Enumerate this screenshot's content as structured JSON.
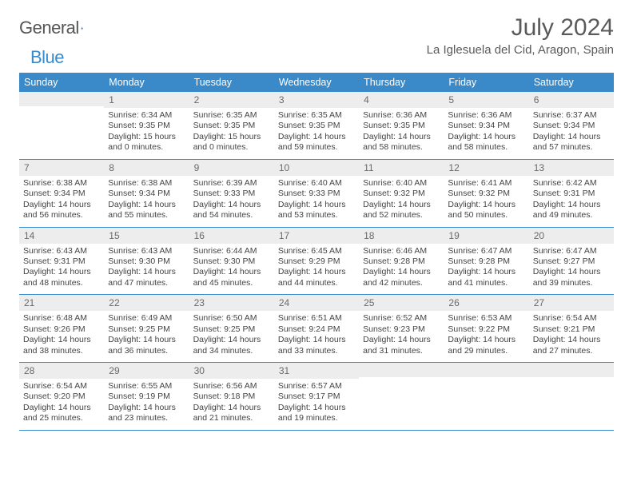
{
  "brand": {
    "part1": "General",
    "part2": "Blue"
  },
  "title": "July 2024",
  "location": "La Iglesuela del Cid, Aragon, Spain",
  "colors": {
    "header_bg": "#3a8ac9",
    "header_text": "#ffffff",
    "daynum_bg": "#ededed",
    "daynum_text": "#6a6a6a",
    "body_text": "#444444",
    "rule": "#3a8ac9"
  },
  "day_headers": [
    "Sunday",
    "Monday",
    "Tuesday",
    "Wednesday",
    "Thursday",
    "Friday",
    "Saturday"
  ],
  "weeks": [
    [
      {
        "num": "",
        "sunrise": "",
        "sunset": "",
        "daylight": ""
      },
      {
        "num": "1",
        "sunrise": "Sunrise: 6:34 AM",
        "sunset": "Sunset: 9:35 PM",
        "daylight": "Daylight: 15 hours and 0 minutes."
      },
      {
        "num": "2",
        "sunrise": "Sunrise: 6:35 AM",
        "sunset": "Sunset: 9:35 PM",
        "daylight": "Daylight: 15 hours and 0 minutes."
      },
      {
        "num": "3",
        "sunrise": "Sunrise: 6:35 AM",
        "sunset": "Sunset: 9:35 PM",
        "daylight": "Daylight: 14 hours and 59 minutes."
      },
      {
        "num": "4",
        "sunrise": "Sunrise: 6:36 AM",
        "sunset": "Sunset: 9:35 PM",
        "daylight": "Daylight: 14 hours and 58 minutes."
      },
      {
        "num": "5",
        "sunrise": "Sunrise: 6:36 AM",
        "sunset": "Sunset: 9:34 PM",
        "daylight": "Daylight: 14 hours and 58 minutes."
      },
      {
        "num": "6",
        "sunrise": "Sunrise: 6:37 AM",
        "sunset": "Sunset: 9:34 PM",
        "daylight": "Daylight: 14 hours and 57 minutes."
      }
    ],
    [
      {
        "num": "7",
        "sunrise": "Sunrise: 6:38 AM",
        "sunset": "Sunset: 9:34 PM",
        "daylight": "Daylight: 14 hours and 56 minutes."
      },
      {
        "num": "8",
        "sunrise": "Sunrise: 6:38 AM",
        "sunset": "Sunset: 9:34 PM",
        "daylight": "Daylight: 14 hours and 55 minutes."
      },
      {
        "num": "9",
        "sunrise": "Sunrise: 6:39 AM",
        "sunset": "Sunset: 9:33 PM",
        "daylight": "Daylight: 14 hours and 54 minutes."
      },
      {
        "num": "10",
        "sunrise": "Sunrise: 6:40 AM",
        "sunset": "Sunset: 9:33 PM",
        "daylight": "Daylight: 14 hours and 53 minutes."
      },
      {
        "num": "11",
        "sunrise": "Sunrise: 6:40 AM",
        "sunset": "Sunset: 9:32 PM",
        "daylight": "Daylight: 14 hours and 52 minutes."
      },
      {
        "num": "12",
        "sunrise": "Sunrise: 6:41 AM",
        "sunset": "Sunset: 9:32 PM",
        "daylight": "Daylight: 14 hours and 50 minutes."
      },
      {
        "num": "13",
        "sunrise": "Sunrise: 6:42 AM",
        "sunset": "Sunset: 9:31 PM",
        "daylight": "Daylight: 14 hours and 49 minutes."
      }
    ],
    [
      {
        "num": "14",
        "sunrise": "Sunrise: 6:43 AM",
        "sunset": "Sunset: 9:31 PM",
        "daylight": "Daylight: 14 hours and 48 minutes."
      },
      {
        "num": "15",
        "sunrise": "Sunrise: 6:43 AM",
        "sunset": "Sunset: 9:30 PM",
        "daylight": "Daylight: 14 hours and 47 minutes."
      },
      {
        "num": "16",
        "sunrise": "Sunrise: 6:44 AM",
        "sunset": "Sunset: 9:30 PM",
        "daylight": "Daylight: 14 hours and 45 minutes."
      },
      {
        "num": "17",
        "sunrise": "Sunrise: 6:45 AM",
        "sunset": "Sunset: 9:29 PM",
        "daylight": "Daylight: 14 hours and 44 minutes."
      },
      {
        "num": "18",
        "sunrise": "Sunrise: 6:46 AM",
        "sunset": "Sunset: 9:28 PM",
        "daylight": "Daylight: 14 hours and 42 minutes."
      },
      {
        "num": "19",
        "sunrise": "Sunrise: 6:47 AM",
        "sunset": "Sunset: 9:28 PM",
        "daylight": "Daylight: 14 hours and 41 minutes."
      },
      {
        "num": "20",
        "sunrise": "Sunrise: 6:47 AM",
        "sunset": "Sunset: 9:27 PM",
        "daylight": "Daylight: 14 hours and 39 minutes."
      }
    ],
    [
      {
        "num": "21",
        "sunrise": "Sunrise: 6:48 AM",
        "sunset": "Sunset: 9:26 PM",
        "daylight": "Daylight: 14 hours and 38 minutes."
      },
      {
        "num": "22",
        "sunrise": "Sunrise: 6:49 AM",
        "sunset": "Sunset: 9:25 PM",
        "daylight": "Daylight: 14 hours and 36 minutes."
      },
      {
        "num": "23",
        "sunrise": "Sunrise: 6:50 AM",
        "sunset": "Sunset: 9:25 PM",
        "daylight": "Daylight: 14 hours and 34 minutes."
      },
      {
        "num": "24",
        "sunrise": "Sunrise: 6:51 AM",
        "sunset": "Sunset: 9:24 PM",
        "daylight": "Daylight: 14 hours and 33 minutes."
      },
      {
        "num": "25",
        "sunrise": "Sunrise: 6:52 AM",
        "sunset": "Sunset: 9:23 PM",
        "daylight": "Daylight: 14 hours and 31 minutes."
      },
      {
        "num": "26",
        "sunrise": "Sunrise: 6:53 AM",
        "sunset": "Sunset: 9:22 PM",
        "daylight": "Daylight: 14 hours and 29 minutes."
      },
      {
        "num": "27",
        "sunrise": "Sunrise: 6:54 AM",
        "sunset": "Sunset: 9:21 PM",
        "daylight": "Daylight: 14 hours and 27 minutes."
      }
    ],
    [
      {
        "num": "28",
        "sunrise": "Sunrise: 6:54 AM",
        "sunset": "Sunset: 9:20 PM",
        "daylight": "Daylight: 14 hours and 25 minutes."
      },
      {
        "num": "29",
        "sunrise": "Sunrise: 6:55 AM",
        "sunset": "Sunset: 9:19 PM",
        "daylight": "Daylight: 14 hours and 23 minutes."
      },
      {
        "num": "30",
        "sunrise": "Sunrise: 6:56 AM",
        "sunset": "Sunset: 9:18 PM",
        "daylight": "Daylight: 14 hours and 21 minutes."
      },
      {
        "num": "31",
        "sunrise": "Sunrise: 6:57 AM",
        "sunset": "Sunset: 9:17 PM",
        "daylight": "Daylight: 14 hours and 19 minutes."
      },
      {
        "num": "",
        "sunrise": "",
        "sunset": "",
        "daylight": ""
      },
      {
        "num": "",
        "sunrise": "",
        "sunset": "",
        "daylight": ""
      },
      {
        "num": "",
        "sunrise": "",
        "sunset": "",
        "daylight": ""
      }
    ]
  ]
}
